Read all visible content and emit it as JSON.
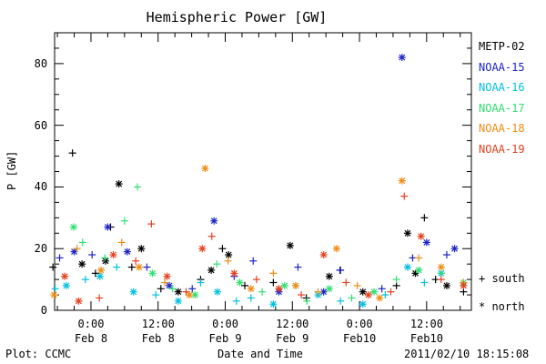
{
  "chart_data": {
    "type": "scatter",
    "title": "Hemispheric Power [GW]",
    "ylabel": "P [GW]",
    "xlabel": "Date and Time",
    "ylim": [
      0,
      90
    ],
    "xlim": [
      "2011-02-07 17:30",
      "2011-02-10 20:00"
    ],
    "grid": false,
    "legend_position": "right",
    "y_ticks": [
      "0",
      "20",
      "40",
      "60",
      "80"
    ],
    "x_tick_labels": [
      {
        "time": "0:00",
        "date": "Feb 8"
      },
      {
        "time": "12:00",
        "date": "Feb 8"
      },
      {
        "time": "0:00",
        "date": "Feb 9"
      },
      {
        "time": "12:00",
        "date": "Feb 9"
      },
      {
        "time": "0:00",
        "date": "Feb10"
      },
      {
        "time": "12:00",
        "date": "Feb10"
      }
    ],
    "symbols": {
      "south": "+ south",
      "north": "* north"
    },
    "series": [
      {
        "name": "METP-02",
        "color": "#000000",
        "points": [
          [
            -6.8,
            14,
            "+"
          ],
          [
            -3.3,
            51,
            "+"
          ],
          [
            -1.6,
            15,
            "*"
          ],
          [
            0.8,
            12,
            "+"
          ],
          [
            2.6,
            16,
            "*"
          ],
          [
            3.5,
            27,
            "+"
          ],
          [
            5.0,
            41,
            "*"
          ],
          [
            7.3,
            14,
            "+"
          ],
          [
            9.0,
            20,
            "*"
          ],
          [
            12.5,
            7,
            "+"
          ],
          [
            15.6,
            6,
            "*"
          ],
          [
            19.6,
            10,
            "+"
          ],
          [
            21.5,
            13,
            "*"
          ],
          [
            23.5,
            20,
            "+"
          ],
          [
            24.6,
            18,
            "*"
          ],
          [
            27.5,
            8,
            "+"
          ],
          [
            32.6,
            9,
            "+"
          ],
          [
            35.6,
            21,
            "*"
          ],
          [
            38.5,
            4,
            "+"
          ],
          [
            42.6,
            11,
            "*"
          ],
          [
            44.6,
            13,
            "+"
          ],
          [
            48.6,
            6,
            "*"
          ],
          [
            54.6,
            8,
            "+"
          ],
          [
            56.6,
            25,
            "*"
          ],
          [
            58.0,
            12,
            "*"
          ],
          [
            59.6,
            30,
            "+"
          ],
          [
            61.6,
            10,
            "+"
          ],
          [
            63.6,
            8,
            "*"
          ],
          [
            66.6,
            6,
            "+"
          ]
        ]
      },
      {
        "name": "NOAA-15",
        "color": "#1c24c8",
        "points": [
          [
            -5.6,
            17,
            "+"
          ],
          [
            -3.0,
            19,
            "*"
          ],
          [
            0.2,
            18,
            "+"
          ],
          [
            3.0,
            27,
            "*"
          ],
          [
            6.5,
            19,
            "*"
          ],
          [
            10.0,
            14,
            "+"
          ],
          [
            14.0,
            8,
            "*"
          ],
          [
            18.1,
            7,
            "+"
          ],
          [
            22.0,
            29,
            "*"
          ],
          [
            25.6,
            11,
            "+"
          ],
          [
            29.0,
            16,
            "+"
          ],
          [
            33.6,
            6,
            "*"
          ],
          [
            37.0,
            14,
            "+"
          ],
          [
            41.6,
            6,
            "*"
          ],
          [
            44.5,
            13,
            "+"
          ],
          [
            52.0,
            7,
            "+"
          ],
          [
            55.6,
            82,
            "*"
          ],
          [
            57.5,
            17,
            "+"
          ],
          [
            60.0,
            22,
            "*"
          ],
          [
            63.6,
            18,
            "+"
          ],
          [
            65.0,
            20,
            "*"
          ]
        ]
      },
      {
        "name": "NOAA-16",
        "color": "#00c0e0",
        "points": [
          [
            -6.4,
            7,
            "+"
          ],
          [
            -4.4,
            8,
            "*"
          ],
          [
            -1.0,
            10,
            "+"
          ],
          [
            1.6,
            11,
            "*"
          ],
          [
            4.6,
            14,
            "+"
          ],
          [
            7.6,
            6,
            "*"
          ],
          [
            11.6,
            5,
            "+"
          ],
          [
            15.6,
            3,
            "*"
          ],
          [
            19.6,
            9,
            "+"
          ],
          [
            22.6,
            6,
            "*"
          ],
          [
            26.0,
            3,
            "+"
          ],
          [
            28.6,
            4,
            "+"
          ],
          [
            32.6,
            2,
            "*"
          ],
          [
            36.6,
            8,
            "+"
          ],
          [
            40.6,
            5,
            "*"
          ],
          [
            44.6,
            3,
            "+"
          ],
          [
            48.6,
            2,
            "*"
          ],
          [
            52.6,
            5,
            "+"
          ],
          [
            56.6,
            14,
            "*"
          ],
          [
            59.6,
            9,
            "+"
          ],
          [
            62.6,
            12,
            "*"
          ],
          [
            66.6,
            8,
            "+"
          ]
        ]
      },
      {
        "name": "NOAA-17",
        "color": "#30e070",
        "points": [
          [
            -3.1,
            27,
            "*"
          ],
          [
            -1.5,
            22,
            "+"
          ],
          [
            2.5,
            17,
            "+"
          ],
          [
            6.0,
            29,
            "+"
          ],
          [
            8.3,
            40,
            "+"
          ],
          [
            11.0,
            12,
            "*"
          ],
          [
            14.6,
            7,
            "+"
          ],
          [
            18.6,
            5,
            "*"
          ],
          [
            22.5,
            15,
            "+"
          ],
          [
            26.6,
            9,
            "*"
          ],
          [
            30.6,
            6,
            "+"
          ],
          [
            34.6,
            8,
            "*"
          ],
          [
            38.6,
            3,
            "+"
          ],
          [
            42.6,
            7,
            "*"
          ],
          [
            46.6,
            4,
            "+"
          ],
          [
            50.6,
            6,
            "*"
          ],
          [
            54.6,
            10,
            "+"
          ],
          [
            58.6,
            13,
            "*"
          ],
          [
            62.6,
            12,
            "+"
          ],
          [
            66.6,
            9,
            "*"
          ]
        ]
      },
      {
        "name": "NOAA-18",
        "color": "#f08c14",
        "points": [
          [
            -6.6,
            5,
            "*"
          ],
          [
            -2.5,
            20,
            "+"
          ],
          [
            1.8,
            13,
            "*"
          ],
          [
            5.5,
            22,
            "+"
          ],
          [
            8.6,
            14,
            "*"
          ],
          [
            13.2,
            9,
            "+"
          ],
          [
            17.6,
            5,
            "*"
          ],
          [
            20.4,
            46,
            "*"
          ],
          [
            24.5,
            16,
            "+"
          ],
          [
            28.6,
            7,
            "*"
          ],
          [
            32.6,
            12,
            "+"
          ],
          [
            36.6,
            8,
            "*"
          ],
          [
            40.6,
            6,
            "+"
          ],
          [
            43.9,
            20,
            "*"
          ],
          [
            47.6,
            8,
            "+"
          ],
          [
            51.6,
            4,
            "*"
          ],
          [
            55.6,
            42,
            "*"
          ],
          [
            58.6,
            17,
            "+"
          ],
          [
            62.6,
            14,
            "*"
          ],
          [
            66.6,
            9,
            "+"
          ]
        ]
      },
      {
        "name": "NOAA-19",
        "color": "#e6401e",
        "points": [
          [
            -4.7,
            11,
            "*"
          ],
          [
            -2.2,
            3,
            "*"
          ],
          [
            1.5,
            4,
            "+"
          ],
          [
            4.0,
            18,
            "*"
          ],
          [
            8.0,
            16,
            "+"
          ],
          [
            10.8,
            28,
            "+"
          ],
          [
            13.6,
            11,
            "*"
          ],
          [
            17.0,
            6,
            "+"
          ],
          [
            19.9,
            20,
            "*"
          ],
          [
            21.6,
            24,
            "+"
          ],
          [
            25.6,
            12,
            "*"
          ],
          [
            29.6,
            10,
            "+"
          ],
          [
            33.6,
            7,
            "*"
          ],
          [
            37.6,
            5,
            "+"
          ],
          [
            41.6,
            18,
            "*"
          ],
          [
            45.6,
            9,
            "+"
          ],
          [
            49.6,
            5,
            "*"
          ],
          [
            53.6,
            6,
            "+"
          ],
          [
            56.0,
            37,
            "+"
          ],
          [
            59.0,
            24,
            "*"
          ],
          [
            62.6,
            10,
            "+"
          ],
          [
            66.6,
            8,
            "*"
          ]
        ]
      }
    ]
  },
  "footer": {
    "plot_credit": "Plot: CCMC",
    "timestamp": "2011/02/10 18:15:08"
  }
}
